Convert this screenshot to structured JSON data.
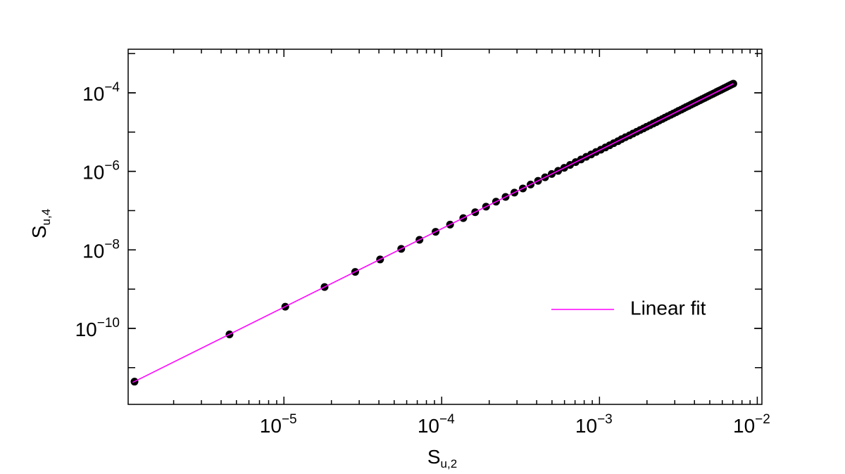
{
  "chart_data": {
    "type": "scatter",
    "xlabel": "Su,2",
    "ylabel": "Su,4",
    "log_x": true,
    "log_y": true,
    "legend_loc": "center right",
    "xlim": [
      1.03e-06,
      0.0107
    ],
    "ylim": [
      1.16e-12,
      0.00129
    ],
    "xticks": [
      {
        "value": 1e-05,
        "label": "10−5"
      },
      {
        "value": 0.0001,
        "label": "10−4"
      },
      {
        "value": 0.001,
        "label": "10−3"
      },
      {
        "value": 0.01,
        "label": "10−2"
      }
    ],
    "yticks": [
      {
        "value": 1e-10,
        "label": "10−10"
      },
      {
        "value": 1e-08,
        "label": "10−8"
      },
      {
        "value": 1e-06,
        "label": "10−6"
      },
      {
        "value": 0.0001,
        "label": "10−4"
      }
    ],
    "series": [
      {
        "type": "scatter",
        "color": "#000000",
        "x": [
          1.13e-06,
          4.52e-06,
          1.02e-05,
          1.81e-05,
          2.83e-05,
          4.07e-05,
          5.54e-05,
          7.23e-05,
          9.15e-05,
          0.000113,
          0.000137,
          0.000163,
          0.000191,
          0.000221,
          0.000254,
          0.000289,
          0.000327,
          0.000366,
          0.000408,
          0.000452,
          0.000498,
          0.000547,
          0.000598,
          0.000651,
          0.000706,
          0.000764,
          0.000824,
          0.000886,
          0.00095,
          0.00102,
          0.00109,
          0.00116,
          0.00123,
          0.00131,
          0.00138,
          0.00146,
          0.00155,
          0.00163,
          0.00172,
          0.00181,
          0.0019,
          0.00199,
          0.00209,
          0.00219,
          0.00229,
          0.00239,
          0.0025,
          0.0026,
          0.00271,
          0.00283,
          0.00294,
          0.00306,
          0.00317,
          0.0033,
          0.00342,
          0.00354,
          0.00367,
          0.0038,
          0.00393,
          0.00407,
          0.0042,
          0.00434,
          0.00448,
          0.00463,
          0.00477,
          0.00492,
          0.00507,
          0.00523,
          0.00538,
          0.00554,
          0.0057,
          0.00586,
          0.00602,
          0.00619,
          0.00636,
          0.00653,
          0.0067,
          0.00687,
          0.00705
        ],
        "values": [
          4.4e-12,
          7.04e-11,
          3.56e-10,
          1.13e-09,
          2.75e-09,
          5.7e-09,
          1.06e-08,
          1.8e-08,
          2.89e-08,
          4.4e-08,
          6.44e-08,
          9.12e-08,
          1.26e-07,
          1.69e-07,
          2.23e-07,
          2.88e-07,
          3.67e-07,
          4.62e-07,
          5.73e-07,
          7.04e-07,
          8.56e-07,
          1.03e-06,
          1.23e-06,
          1.46e-06,
          1.72e-06,
          2.01e-06,
          2.34e-06,
          2.7e-06,
          3.11e-06,
          3.56e-06,
          4.06e-06,
          4.61e-06,
          5.22e-06,
          5.88e-06,
          6.6e-06,
          7.39e-06,
          8.25e-06,
          9.17e-06,
          1.02e-05,
          1.13e-05,
          1.24e-05,
          1.37e-05,
          1.5e-05,
          1.65e-05,
          1.8e-05,
          1.97e-05,
          2.15e-05,
          2.34e-05,
          2.54e-05,
          2.75e-05,
          2.98e-05,
          3.22e-05,
          3.47e-05,
          3.74e-05,
          4.03e-05,
          4.33e-05,
          4.64e-05,
          4.98e-05,
          5.33e-05,
          5.7e-05,
          6.09e-05,
          6.5e-05,
          6.93e-05,
          7.38e-05,
          7.85e-05,
          8.35e-05,
          8.87e-05,
          9.41e-05,
          9.97e-05,
          0.000106,
          0.000112,
          0.000118,
          0.000125,
          0.000132,
          0.000139,
          0.000147,
          0.000155,
          0.000163,
          0.000171
        ]
      },
      {
        "type": "line",
        "name": "Linear fit",
        "color": "#ff00ff",
        "x": [
          1.1e-06,
          0.00705
        ],
        "values": [
          4.2e-12,
          0.000171
        ]
      }
    ]
  }
}
